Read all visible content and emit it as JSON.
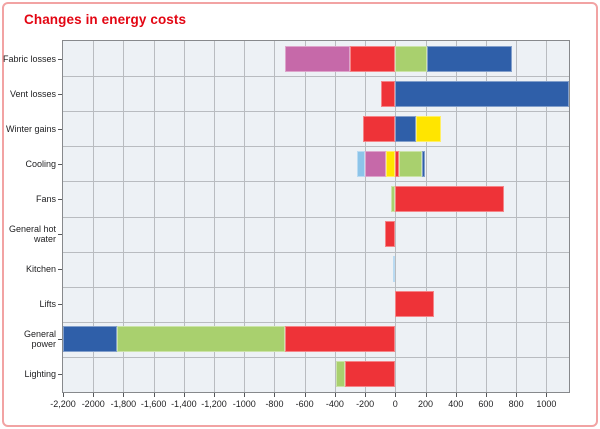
{
  "title": "Changes in energy costs",
  "colors": {
    "title_red": "#e30613",
    "card_border": "#f2a3a3",
    "plot_background": "#edf1f5",
    "gridline": "#b9bcc0",
    "frame": "#87898c"
  },
  "chart_data": {
    "type": "bar",
    "orientation": "horizontal",
    "stacked": true,
    "title": "Changes in energy costs",
    "xlabel": "",
    "ylabel": "",
    "xlim": [
      -2200,
      1150
    ],
    "grid": true,
    "legend": "none",
    "x_tick_values": [
      -2200,
      -2000,
      -1800,
      -1600,
      -1400,
      -1200,
      -1000,
      -800,
      -600,
      -400,
      -200,
      0,
      200,
      400,
      600,
      800,
      1000
    ],
    "x_tick_labels": [
      "-2,200",
      "-2000",
      "-1,800",
      "-1,600",
      "-1,400",
      "-1,200",
      "-1000",
      "-800",
      "-600",
      "-400",
      "-200",
      "0",
      "200",
      "400",
      "600",
      "800",
      "1000"
    ],
    "palette": {
      "red": "#ee3338",
      "green": "#a9d06e",
      "blue": "#2f5fa9",
      "yellow": "#ffe500",
      "magenta": "#c669a9",
      "lightblue": "#8cc4e9"
    },
    "rows": [
      {
        "category": "Fabric losses",
        "segments": [
          {
            "series": "magenta",
            "from": -730,
            "to": -300
          },
          {
            "series": "red",
            "from": -300,
            "to": 0
          },
          {
            "series": "green",
            "from": 0,
            "to": 210
          },
          {
            "series": "blue",
            "from": 210,
            "to": 775
          }
        ]
      },
      {
        "category": "Vent losses",
        "segments": [
          {
            "series": "red",
            "from": -95,
            "to": 0
          },
          {
            "series": "blue",
            "from": 0,
            "to": 1150
          }
        ]
      },
      {
        "category": "Winter gains",
        "segments": [
          {
            "series": "red",
            "from": -215,
            "to": 0
          },
          {
            "series": "blue",
            "from": 0,
            "to": 140
          },
          {
            "series": "yellow",
            "from": 140,
            "to": 305
          }
        ]
      },
      {
        "category": "Cooling",
        "segments": [
          {
            "series": "lightblue",
            "from": -255,
            "to": -200
          },
          {
            "series": "magenta",
            "from": -200,
            "to": -60
          },
          {
            "series": "yellow",
            "from": -60,
            "to": 0
          },
          {
            "series": "red",
            "from": 0,
            "to": 25
          },
          {
            "series": "green",
            "from": 25,
            "to": 180
          },
          {
            "series": "blue",
            "from": 180,
            "to": 195
          }
        ]
      },
      {
        "category": "Fans",
        "segments": [
          {
            "series": "green",
            "from": -30,
            "to": 0
          },
          {
            "series": "red",
            "from": 0,
            "to": 720
          }
        ]
      },
      {
        "category": "General hot water",
        "segments": [
          {
            "series": "red",
            "from": -70,
            "to": 0
          }
        ]
      },
      {
        "category": "Kitchen",
        "segments": [
          {
            "series": "lightblue",
            "from": -12,
            "to": 0
          }
        ]
      },
      {
        "category": "Lifts",
        "segments": [
          {
            "series": "red",
            "from": 0,
            "to": 255
          }
        ]
      },
      {
        "category": "General power",
        "segments": [
          {
            "series": "blue",
            "from": -2200,
            "to": -1840
          },
          {
            "series": "green",
            "from": -1840,
            "to": -730
          },
          {
            "series": "red",
            "from": -730,
            "to": 0
          }
        ]
      },
      {
        "category": "Lighting",
        "segments": [
          {
            "series": "green",
            "from": -395,
            "to": -330
          },
          {
            "series": "red",
            "from": -330,
            "to": 0
          }
        ]
      }
    ]
  }
}
